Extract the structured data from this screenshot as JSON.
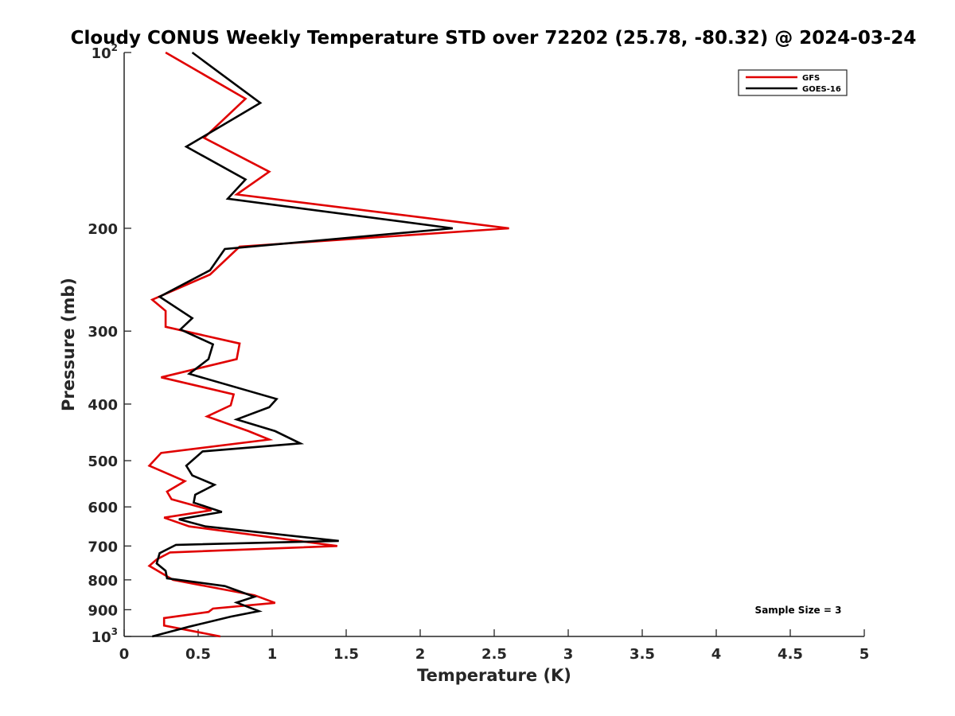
{
  "chart_data": {
    "type": "line",
    "title": "Cloudy CONUS Weekly Temperature STD over 72202 (25.78, -80.32) @ 2024-03-24",
    "xlabel": "Temperature (K)",
    "ylabel": "Pressure (mb)",
    "xlim": [
      0,
      5
    ],
    "ylim": [
      100,
      1000
    ],
    "y_scale": "log",
    "y_reversed": true,
    "x_ticks": [
      "0",
      "0.5",
      "1",
      "1.5",
      "2",
      "2.5",
      "3",
      "3.5",
      "4",
      "4.5",
      "5"
    ],
    "y_ticks": [
      {
        "value": 100,
        "label": "10",
        "exp": "2"
      },
      {
        "value": 200,
        "label": "200",
        "exp": ""
      },
      {
        "value": 300,
        "label": "300",
        "exp": ""
      },
      {
        "value": 400,
        "label": "400",
        "exp": ""
      },
      {
        "value": 500,
        "label": "500",
        "exp": ""
      },
      {
        "value": 600,
        "label": "600",
        "exp": ""
      },
      {
        "value": 700,
        "label": "700",
        "exp": ""
      },
      {
        "value": 800,
        "label": "800",
        "exp": ""
      },
      {
        "value": 900,
        "label": "900",
        "exp": ""
      },
      {
        "value": 1000,
        "label": "10",
        "exp": "3"
      }
    ],
    "grid": false,
    "legend_position": "top-right",
    "annotation": "Sample Size = 3",
    "series": [
      {
        "name": "GFS",
        "color": "#e00000",
        "points": [
          [
            0.28,
            100
          ],
          [
            0.82,
            120
          ],
          [
            0.54,
            140
          ],
          [
            0.98,
            160
          ],
          [
            0.76,
            175
          ],
          [
            2.6,
            200
          ],
          [
            0.78,
            215
          ],
          [
            0.58,
            240
          ],
          [
            0.19,
            265
          ],
          [
            0.28,
            277
          ],
          [
            0.28,
            295
          ],
          [
            0.78,
            315
          ],
          [
            0.76,
            335
          ],
          [
            0.25,
            360
          ],
          [
            0.74,
            385
          ],
          [
            0.72,
            402
          ],
          [
            0.56,
            420
          ],
          [
            0.84,
            445
          ],
          [
            0.98,
            460
          ],
          [
            0.25,
            485
          ],
          [
            0.17,
            510
          ],
          [
            0.41,
            542
          ],
          [
            0.29,
            565
          ],
          [
            0.32,
            582
          ],
          [
            0.59,
            608
          ],
          [
            0.27,
            626
          ],
          [
            0.44,
            648
          ],
          [
            1.44,
            700
          ],
          [
            0.31,
            718
          ],
          [
            0.22,
            738
          ],
          [
            0.17,
            757
          ],
          [
            0.22,
            770
          ],
          [
            0.33,
            800
          ],
          [
            0.88,
            850
          ],
          [
            1.02,
            876
          ],
          [
            0.6,
            896
          ],
          [
            0.57,
            908
          ],
          [
            0.27,
            930
          ],
          [
            0.27,
            958
          ],
          [
            0.65,
            1000
          ]
        ]
      },
      {
        "name": "GOES-16",
        "color": "#000000",
        "points": [
          [
            0.46,
            100
          ],
          [
            0.92,
            122
          ],
          [
            0.42,
            145
          ],
          [
            0.82,
            165
          ],
          [
            0.7,
            178
          ],
          [
            2.22,
            200
          ],
          [
            0.68,
            217
          ],
          [
            0.58,
            236
          ],
          [
            0.24,
            262
          ],
          [
            0.46,
            285
          ],
          [
            0.38,
            298
          ],
          [
            0.6,
            316
          ],
          [
            0.57,
            335
          ],
          [
            0.44,
            355
          ],
          [
            1.03,
            392
          ],
          [
            0.98,
            405
          ],
          [
            0.76,
            425
          ],
          [
            1.02,
            445
          ],
          [
            1.19,
            467
          ],
          [
            0.53,
            482
          ],
          [
            0.42,
            510
          ],
          [
            0.46,
            530
          ],
          [
            0.61,
            550
          ],
          [
            0.48,
            572
          ],
          [
            0.47,
            590
          ],
          [
            0.66,
            612
          ],
          [
            0.37,
            630
          ],
          [
            0.55,
            648
          ],
          [
            1.45,
            686
          ],
          [
            0.35,
            697
          ],
          [
            0.24,
            720
          ],
          [
            0.22,
            750
          ],
          [
            0.28,
            772
          ],
          [
            0.29,
            795
          ],
          [
            0.68,
            820
          ],
          [
            0.88,
            855
          ],
          [
            0.76,
            875
          ],
          [
            0.91,
            905
          ],
          [
            0.72,
            925
          ],
          [
            0.44,
            962
          ],
          [
            0.19,
            1000
          ]
        ]
      }
    ]
  }
}
